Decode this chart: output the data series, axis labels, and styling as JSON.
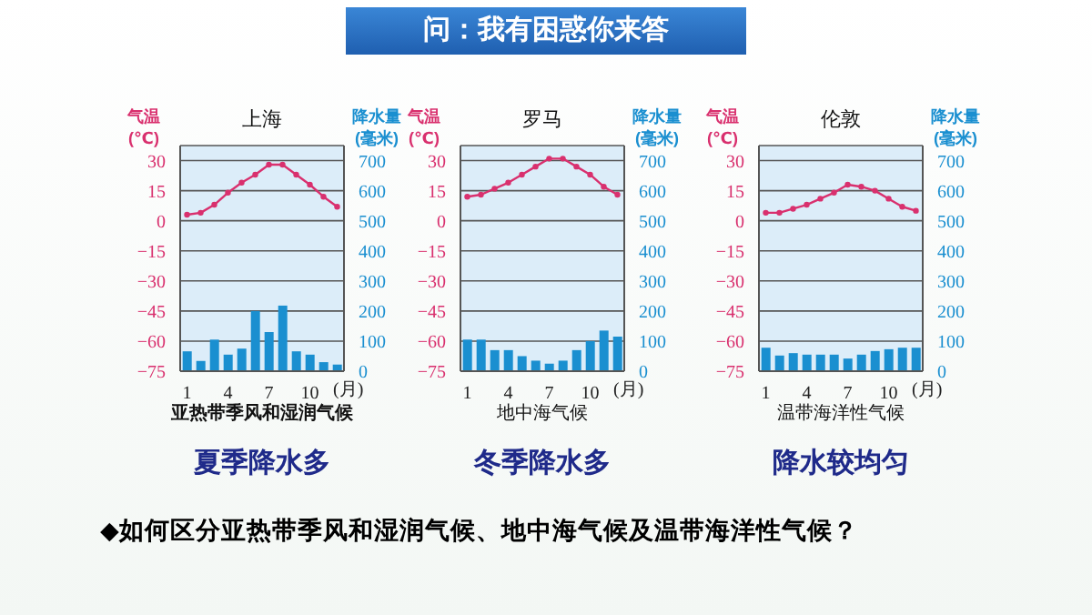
{
  "chart_data": [
    {
      "type": "bar",
      "title": "上海",
      "xlabel": "(月)",
      "ylabel": "气温\n(℃)",
      "y2label": "降水量\n(毫米)",
      "categories": [
        "1",
        null,
        null,
        "4",
        null,
        null,
        "7",
        null,
        null,
        "10",
        null,
        null
      ],
      "ylim": [
        -75,
        37.5
      ],
      "yticks": [
        -75,
        -60,
        -45,
        -30,
        -15,
        0,
        15,
        30
      ],
      "y2lim": [
        0,
        750
      ],
      "y2ticks": [
        0,
        100,
        200,
        300,
        400,
        500,
        600,
        700
      ],
      "grid": "y",
      "marker": "circle",
      "series": [
        {
          "axis": "y2",
          "color": "#1a8fd0",
          "values": [
            66,
            34,
            105,
            55,
            75,
            200,
            130,
            218,
            66,
            55,
            30,
            22
          ]
        },
        {
          "type": "line",
          "color": "#d9306e",
          "values": [
            3,
            4,
            8,
            14,
            19,
            23,
            28,
            28,
            23,
            18,
            12,
            7
          ]
        }
      ],
      "annotations": [
        "亚热带季风和湿润气候",
        "夏季降水多",
        "问：我有困惑你来答",
        "◆如何区分亚热带季风和湿润气候、地中海气候及温带海洋性气候？"
      ]
    },
    {
      "type": "bar",
      "title": "罗马",
      "xlabel": "(月)",
      "ylabel": "气温\n(℃)",
      "y2label": "降水量\n(毫米)",
      "categories": [
        "1",
        null,
        null,
        "4",
        null,
        null,
        "7",
        null,
        null,
        "10",
        null,
        null
      ],
      "ylim": [
        -75,
        37.5
      ],
      "yticks": [
        -75,
        -60,
        -45,
        -30,
        -15,
        0,
        15,
        30
      ],
      "y2lim": [
        0,
        750
      ],
      "y2ticks": [
        0,
        100,
        200,
        300,
        400,
        500,
        600,
        700
      ],
      "grid": "y",
      "marker": "circle",
      "series": [
        {
          "axis": "y2",
          "color": "#1a8fd0",
          "values": [
            105,
            105,
            70,
            70,
            50,
            35,
            25,
            35,
            70,
            100,
            135,
            115
          ]
        },
        {
          "type": "line",
          "color": "#d9306e",
          "values": [
            12,
            13,
            16,
            19,
            23,
            27,
            31,
            31,
            27,
            23,
            17,
            13
          ]
        }
      ],
      "annotations": [
        "地中海气候",
        "冬季降水多"
      ]
    },
    {
      "type": "bar",
      "title": "伦敦",
      "xlabel": "(月)",
      "ylabel": "气温\n(℃)",
      "y2label": "降水量\n(毫米)",
      "categories": [
        "1",
        null,
        null,
        "4",
        null,
        null,
        "7",
        null,
        null,
        "10",
        null,
        null
      ],
      "ylim": [
        -75,
        37.5
      ],
      "yticks": [
        -75,
        -60,
        -45,
        -30,
        -15,
        0,
        15,
        30
      ],
      "y2lim": [
        0,
        750
      ],
      "y2ticks": [
        0,
        100,
        200,
        300,
        400,
        500,
        600,
        700
      ],
      "grid": "y",
      "marker": "circle",
      "series": [
        {
          "axis": "y2",
          "color": "#1a8fd0",
          "values": [
            78,
            52,
            60,
            55,
            55,
            55,
            42,
            55,
            67,
            73,
            78,
            78
          ]
        },
        {
          "type": "line",
          "color": "#d9306e",
          "values": [
            4,
            4,
            6,
            8,
            11,
            14,
            18,
            17,
            15,
            11,
            7,
            5
          ]
        }
      ],
      "annotations": [
        "温带海洋性气候",
        "降水较均匀"
      ]
    }
  ]
}
